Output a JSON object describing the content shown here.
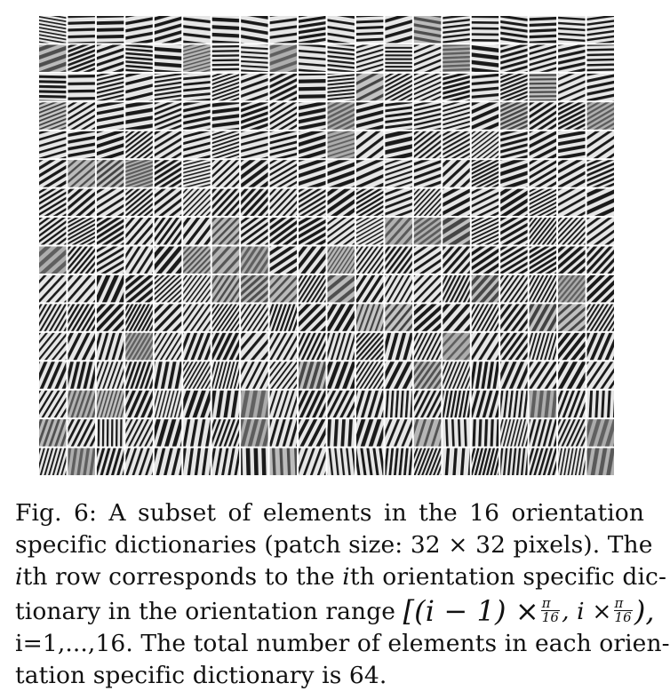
{
  "figure": {
    "grid_rows": 16,
    "grid_cols": 20,
    "cell_color_dark": "#1a1a1a",
    "cell_color_light": "#e6e6e6",
    "background": "#ffffff"
  },
  "caption": {
    "label": "Fig. 6:",
    "line1_rest": "A subset of elements in the 16 orientation",
    "line2": "specific dictionaries (patch size: 32 × 32 pixels). The",
    "line3_a": "i",
    "line3_b": "th row corresponds to the ",
    "line3_c": "i",
    "line3_d": "th orientation specific dic-",
    "line4_a": "tionary in the orientation range ",
    "line4_math_open": "[(i − 1) ×",
    "line4_math_mid": ", i ×",
    "line4_math_close": "),",
    "frac_num": "π",
    "frac_den": "16",
    "line5": "i=1,...,16. The total number of elements in each orien-",
    "line6": "tation specific dictionary is 64."
  }
}
